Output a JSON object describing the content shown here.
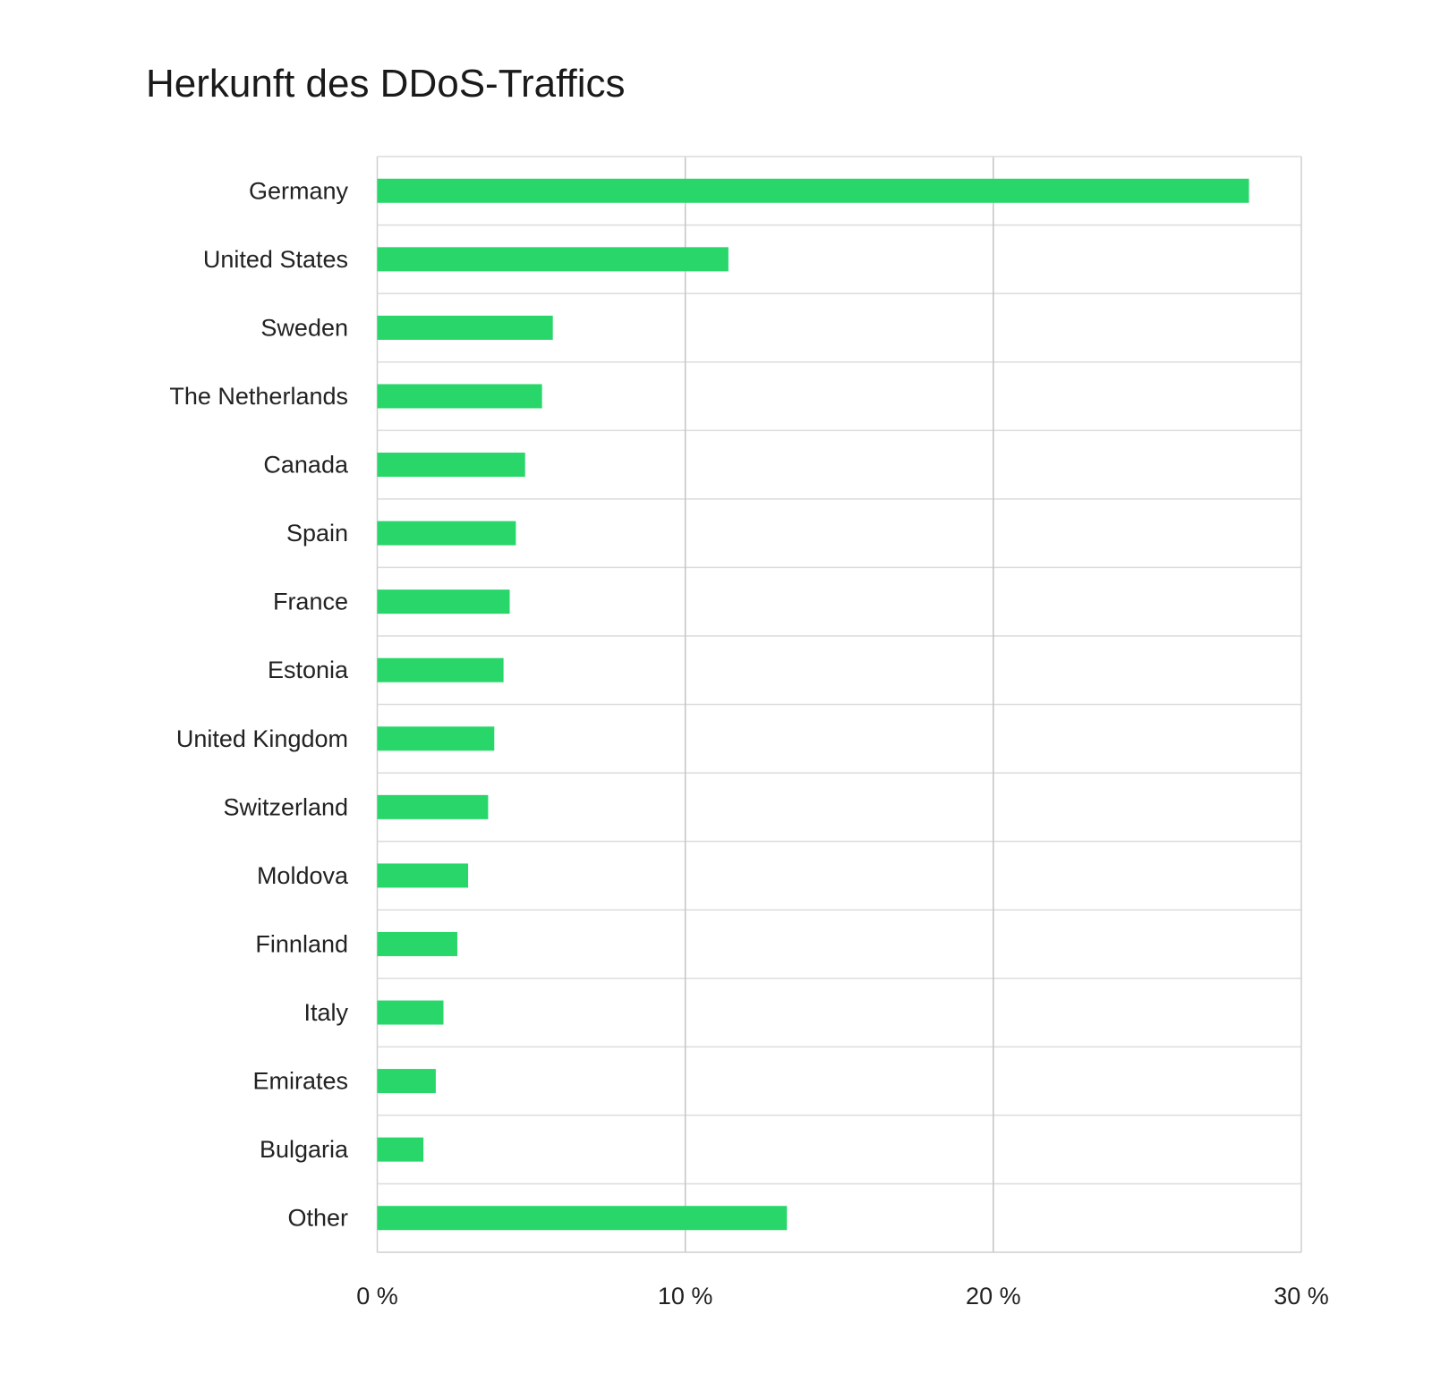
{
  "chart_data": {
    "type": "bar",
    "orientation": "horizontal",
    "title": "Herkunft des DDoS-Traffics",
    "xlabel": "",
    "ylabel": "",
    "categories": [
      "Germany",
      "United States",
      "Sweden",
      "The Netherlands",
      "Canada",
      "Spain",
      "France",
      "Estonia",
      "United Kingdom",
      "Switzerland",
      "Moldova",
      "Finnland",
      "Italy",
      "Emirates",
      "Bulgaria",
      "Other"
    ],
    "values": [
      28.3,
      11.4,
      5.7,
      5.35,
      4.8,
      4.5,
      4.3,
      4.1,
      3.8,
      3.6,
      2.95,
      2.6,
      2.15,
      1.9,
      1.5,
      13.3
    ],
    "xlim": [
      0,
      30
    ],
    "xticks": [
      0,
      10,
      20,
      30
    ],
    "xtick_labels": [
      "0 %",
      "10 %",
      "20 %",
      "30 %"
    ],
    "grid": true,
    "bar_color": "#29d66a"
  }
}
